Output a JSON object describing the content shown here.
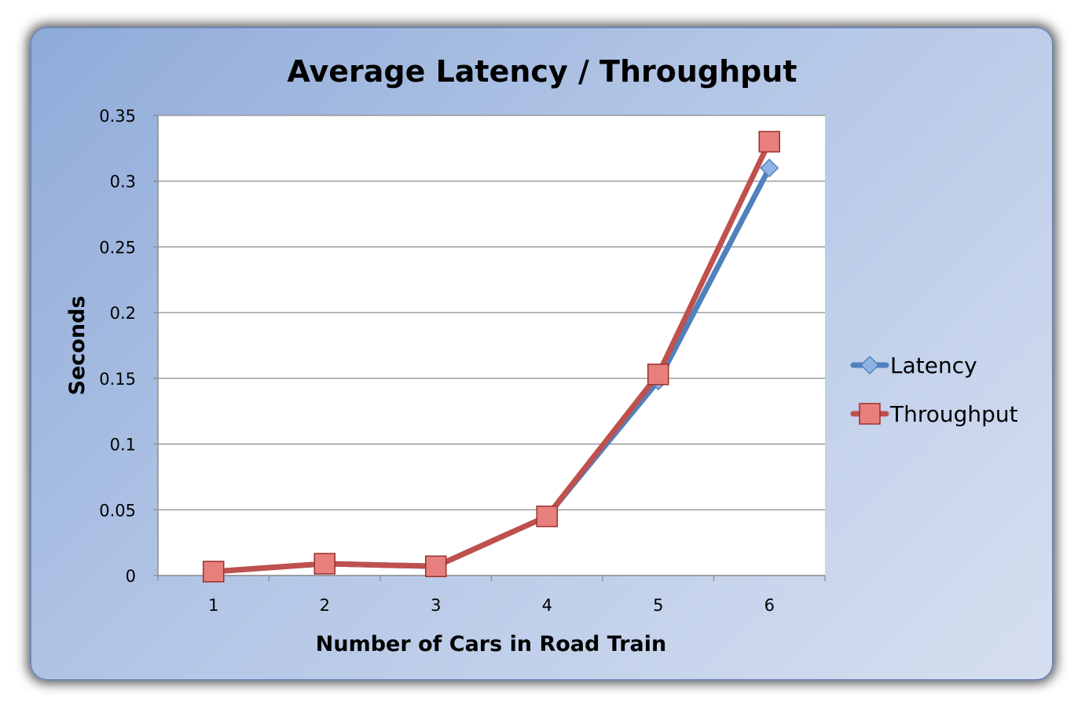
{
  "chart_data": {
    "type": "line",
    "title": "Average Latency / Throughput",
    "xlabel": "Number of Cars in Road Train",
    "ylabel": "Seconds",
    "categories": [
      "1",
      "2",
      "3",
      "4",
      "5",
      "6"
    ],
    "ylim": [
      0,
      0.35
    ],
    "yticks": [
      "0",
      "0.05",
      "0.1",
      "0.15",
      "0.2",
      "0.25",
      "0.3",
      "0.35"
    ],
    "grid": true,
    "legend_position": "right",
    "series": [
      {
        "name": "Latency",
        "values": [
          0.003,
          0.009,
          0.007,
          0.045,
          0.148,
          0.31
        ],
        "color": "#4f81bd",
        "marker": "diamond"
      },
      {
        "name": "Throughput",
        "values": [
          0.003,
          0.009,
          0.007,
          0.045,
          0.153,
          0.33
        ],
        "color": "#c0504d",
        "marker": "square"
      }
    ]
  }
}
